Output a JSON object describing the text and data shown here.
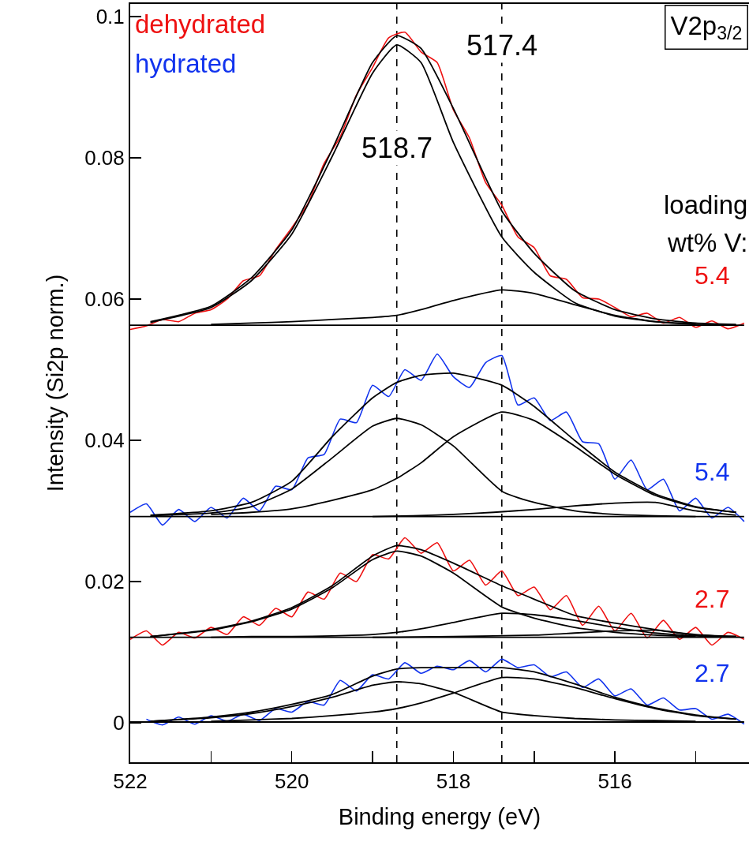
{
  "chart_data": {
    "type": "line",
    "xlabel": "Binding energy (eV)",
    "ylabel": "Intensity (Si2p norm.)",
    "x": [
      522,
      521.8,
      521.6,
      521.4,
      521.2,
      521,
      520.8,
      520.6,
      520.4,
      520.2,
      520,
      519.8,
      519.6,
      519.4,
      519.2,
      519,
      518.8,
      518.6,
      518.4,
      518.2,
      518,
      517.8,
      517.6,
      517.4,
      517.2,
      517,
      516.8,
      516.6,
      516.4,
      516.2,
      516,
      515.8,
      515.6,
      515.4,
      515.2,
      515,
      514.8,
      514.6,
      514.4
    ],
    "xlim": [
      522,
      514.34
    ],
    "xticks": [
      522,
      {
        "value": 521,
        "label": null
      },
      520,
      {
        "value": 519,
        "label": null
      },
      518,
      {
        "value": 517,
        "label": null
      },
      516,
      {
        "value": 515,
        "label": null
      }
    ],
    "ylim": [
      -0.0056,
      0.1018
    ],
    "yticks": [
      0,
      0.02,
      0.04,
      0.06,
      0.08,
      0.1
    ],
    "line_style": "solid",
    "series": [
      {
        "name": "5.4",
        "color": "#ee1111",
        "values": [
          0.0557,
          0.0562,
          0.0571,
          0.0568,
          0.058,
          0.0585,
          0.06,
          0.0626,
          0.0633,
          0.067,
          0.0701,
          0.0735,
          0.0792,
          0.083,
          0.0889,
          0.0928,
          0.097,
          0.0978,
          0.095,
          0.0935,
          0.0868,
          0.0828,
          0.0765,
          0.0733,
          0.0688,
          0.0673,
          0.0633,
          0.0628,
          0.0602,
          0.06,
          0.0588,
          0.0575,
          0.058,
          0.0566,
          0.0574,
          0.056,
          0.0569,
          0.0558,
          0.0566
        ]
      },
      {
        "name": "5.4",
        "color": "#1133ee",
        "values": [
          0.0298,
          0.031,
          0.028,
          0.0302,
          0.0285,
          0.0305,
          0.029,
          0.0318,
          0.03,
          0.0335,
          0.033,
          0.0375,
          0.038,
          0.043,
          0.0425,
          0.0478,
          0.0462,
          0.05,
          0.0485,
          0.0522,
          0.049,
          0.0475,
          0.051,
          0.052,
          0.045,
          0.046,
          0.0428,
          0.044,
          0.0398,
          0.0395,
          0.0345,
          0.0372,
          0.033,
          0.0345,
          0.03,
          0.0318,
          0.029,
          0.0305,
          0.0285
        ]
      },
      {
        "name": "2.7",
        "color": "#ee1111",
        "values": [
          0.0118,
          0.013,
          0.011,
          0.0128,
          0.012,
          0.0135,
          0.0125,
          0.015,
          0.0138,
          0.0162,
          0.015,
          0.0185,
          0.0175,
          0.0212,
          0.02,
          0.0238,
          0.0232,
          0.0262,
          0.024,
          0.0255,
          0.0215,
          0.023,
          0.0195,
          0.0215,
          0.018,
          0.0192,
          0.016,
          0.018,
          0.0138,
          0.0165,
          0.013,
          0.0155,
          0.012,
          0.0145,
          0.0118,
          0.0135,
          0.011,
          0.0128,
          0.0118
        ]
      },
      {
        "name": "2.7",
        "color": "#1133ee",
        "values": [
          null,
          0.0005,
          -0.0003,
          0.0008,
          -0.0002,
          0.001,
          0.0002,
          0.0012,
          0.0003,
          0.002,
          0.0015,
          0.003,
          0.0025,
          0.006,
          0.0045,
          0.0068,
          0.0062,
          0.0085,
          0.007,
          0.008,
          0.0075,
          0.0088,
          0.0072,
          0.009,
          0.0078,
          0.0082,
          0.0065,
          0.0072,
          0.005,
          0.0062,
          0.0038,
          0.0048,
          0.0025,
          0.0035,
          0.0018,
          0.002,
          0.0005,
          0.0012,
          -0.0002
        ]
      },
      {
        "color": "#000000",
        "x": [
          521.75,
          521,
          520.5,
          520,
          519.5,
          519,
          518.7,
          518.4,
          518,
          517.4,
          517,
          516.5,
          516,
          515.5,
          515,
          514.5
        ],
        "values": [
          0.0568,
          0.059,
          0.063,
          0.0698,
          0.0812,
          0.0935,
          0.0973,
          0.0955,
          0.087,
          0.0725,
          0.0665,
          0.0612,
          0.0585,
          0.0572,
          0.0566,
          0.0564
        ]
      },
      {
        "color": "#000000",
        "x": [
          521.75,
          521,
          520.5,
          520,
          519.5,
          519,
          518.7,
          518.4,
          518,
          517.4,
          517,
          516.5,
          516,
          515.5,
          515
        ],
        "values": [
          0.0567,
          0.0588,
          0.0626,
          0.0692,
          0.0802,
          0.092,
          0.096,
          0.0935,
          0.0822,
          0.0688,
          0.0638,
          0.0595,
          0.0576,
          0.0568,
          0.0565
        ]
      },
      {
        "color": "#000000",
        "x": [
          521,
          520.5,
          520,
          519.5,
          519,
          518.7,
          518.4,
          518,
          517.4,
          517,
          516.5,
          516,
          515.5,
          515,
          514.5
        ],
        "values": [
          0.0564,
          0.0566,
          0.0568,
          0.0571,
          0.0574,
          0.0577,
          0.0585,
          0.0598,
          0.0613,
          0.0608,
          0.0592,
          0.0577,
          0.0568,
          0.0564,
          0.0563
        ]
      },
      {
        "color": "#000000",
        "x": [
          522,
          514.4
        ],
        "values": [
          0.0563,
          0.0563
        ]
      },
      {
        "color": "#000000",
        "x": [
          521.75,
          521,
          520.5,
          520,
          519.5,
          519,
          518.7,
          518.4,
          518,
          517.4,
          517,
          516.5,
          516,
          515.5,
          515,
          514.5
        ],
        "values": [
          0.0294,
          0.03,
          0.0312,
          0.0342,
          0.0405,
          0.046,
          0.0482,
          0.0492,
          0.0495,
          0.0478,
          0.0448,
          0.04,
          0.0355,
          0.0324,
          0.0306,
          0.0298
        ]
      },
      {
        "color": "#000000",
        "x": [
          521.75,
          521,
          520.5,
          520,
          519.5,
          519,
          518.7,
          518.4,
          518,
          517.4,
          517,
          516.5,
          516,
          515.5,
          515
        ],
        "values": [
          0.0293,
          0.0297,
          0.0306,
          0.0331,
          0.0375,
          0.042,
          0.0431,
          0.0422,
          0.0392,
          0.0328,
          0.0312,
          0.03,
          0.0295,
          0.0293,
          0.0292
        ]
      },
      {
        "color": "#000000",
        "x": [
          521,
          520.5,
          520,
          519.5,
          519,
          518.7,
          518.4,
          518,
          517.4,
          517,
          516.5,
          516,
          515.5,
          515,
          514.5
        ],
        "values": [
          0.0295,
          0.0298,
          0.0303,
          0.0315,
          0.033,
          0.0346,
          0.0368,
          0.0405,
          0.044,
          0.0428,
          0.0392,
          0.0352,
          0.0322,
          0.0305,
          0.0298
        ]
      },
      {
        "color": "#000000",
        "x": [
          519,
          518.5,
          518,
          517.5,
          517,
          516.5,
          516,
          515.5,
          515,
          514.5
        ],
        "values": [
          0.0292,
          0.0293,
          0.0295,
          0.0298,
          0.0302,
          0.0307,
          0.0311,
          0.0312,
          0.03,
          0.0294
        ]
      },
      {
        "color": "#000000",
        "x": [
          522,
          514.4
        ],
        "values": [
          0.0292,
          0.0292
        ]
      },
      {
        "color": "#000000",
        "x": [
          521.75,
          521,
          520.5,
          520,
          519.5,
          519,
          518.7,
          518.4,
          518,
          517.4,
          517,
          516.5,
          516,
          515.5,
          515,
          514.5
        ],
        "values": [
          0.0122,
          0.0132,
          0.0144,
          0.0163,
          0.0194,
          0.0236,
          0.0251,
          0.0245,
          0.0226,
          0.0194,
          0.0175,
          0.0152,
          0.0141,
          0.0132,
          0.0125,
          0.0122
        ]
      },
      {
        "color": "#000000",
        "x": [
          521.75,
          521,
          520.5,
          520,
          519.5,
          519,
          518.7,
          518.4,
          518,
          517.4,
          517,
          516.5,
          516,
          515.5,
          515
        ],
        "values": [
          0.0122,
          0.0131,
          0.0143,
          0.0161,
          0.0191,
          0.0231,
          0.0243,
          0.0236,
          0.0212,
          0.0164,
          0.0148,
          0.0135,
          0.0128,
          0.0124,
          0.0122
        ]
      },
      {
        "color": "#000000",
        "x": [
          521,
          520.5,
          520,
          519.5,
          519,
          518.7,
          518.4,
          518,
          517.4,
          517,
          516.5,
          516,
          515.5,
          515,
          514.5
        ],
        "values": [
          0.0121,
          0.0122,
          0.0122,
          0.0123,
          0.0125,
          0.0128,
          0.0133,
          0.0142,
          0.0155,
          0.0153,
          0.0145,
          0.0135,
          0.0127,
          0.0123,
          0.0122
        ]
      },
      {
        "color": "#000000",
        "x": [
          519,
          518,
          517,
          516.5,
          516,
          515.5,
          515,
          514.5
        ],
        "values": [
          0.0121,
          0.0122,
          0.0124,
          0.0127,
          0.013,
          0.0131,
          0.0124,
          0.0122
        ]
      },
      {
        "color": "#000000",
        "x": [
          522,
          514.4
        ],
        "values": [
          0.0121,
          0.0121
        ]
      },
      {
        "color": "#000000",
        "x": [
          521.75,
          521,
          520.5,
          520,
          519.5,
          519,
          518.7,
          518.4,
          518,
          517.4,
          517,
          516.5,
          516,
          515.5,
          515,
          514.5
        ],
        "values": [
          0.0002,
          0.0008,
          0.0015,
          0.0026,
          0.004,
          0.0066,
          0.0076,
          0.0078,
          0.0078,
          0.0078,
          0.0072,
          0.0055,
          0.0036,
          0.0021,
          0.0011,
          0.0005
        ]
      },
      {
        "color": "#000000",
        "x": [
          521.75,
          521,
          520.5,
          520,
          519.5,
          519,
          518.7,
          518.4,
          518,
          517.4,
          517,
          516.5,
          516,
          515.5,
          515
        ],
        "values": [
          0.0002,
          0.0007,
          0.0013,
          0.0023,
          0.0036,
          0.0053,
          0.0058,
          0.0055,
          0.0043,
          0.0015,
          0.001,
          0.0006,
          0.0004,
          0.0003,
          0.0002
        ]
      },
      {
        "color": "#000000",
        "x": [
          521,
          520.5,
          520,
          519.5,
          519,
          518.7,
          518.4,
          518,
          517.4,
          517,
          516.5,
          516,
          515.5,
          515,
          514.5
        ],
        "values": [
          0.0002,
          0.0004,
          0.0006,
          0.001,
          0.0015,
          0.002,
          0.0028,
          0.0042,
          0.0064,
          0.0062,
          0.005,
          0.0034,
          0.002,
          0.001,
          0.0005
        ]
      },
      {
        "color": "#000000",
        "x": [
          522,
          514.4
        ],
        "values": [
          0.0001,
          0.0001
        ]
      }
    ],
    "ref_lines": [
      {
        "axis": "x",
        "value": 518.7,
        "label": "518.7",
        "color": "#000000",
        "line_style": "dashed"
      },
      {
        "axis": "x",
        "value": 517.4,
        "label": "517.4",
        "color": "#000000",
        "line_style": "dashed"
      }
    ],
    "annotations": [
      "dehydrated",
      "hydrated",
      "V2p$_{3/2}$",
      "loading",
      "wt% V:"
    ]
  }
}
